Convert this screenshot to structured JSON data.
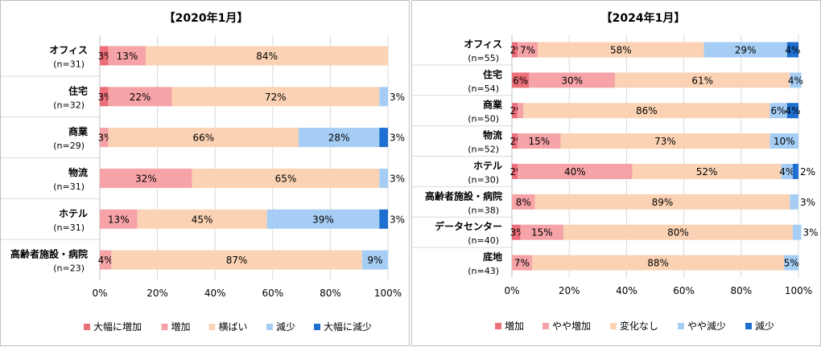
{
  "charts": [
    {
      "title": "【2020年1月】",
      "legend": [
        "大幅に増加",
        "増加",
        "横ばい",
        "減少",
        "大幅に減少"
      ],
      "colors": [
        "#ec6f7a",
        "#f5a3a7",
        "#fbd3b4",
        "#a6cef5",
        "#1f6fd1"
      ],
      "chart_data": {
        "type": "bar",
        "orientation": "horizontal-stacked-100",
        "categories": [
          {
            "name": "オフィス",
            "n": "(n=31)"
          },
          {
            "name": "住宅",
            "n": "(n=32)"
          },
          {
            "name": "商業",
            "n": "(n=29)"
          },
          {
            "name": "物流",
            "n": "(n=31)"
          },
          {
            "name": "ホテル",
            "n": "(n=31)"
          },
          {
            "name": "高齢者施設・病院",
            "n": "(n=23)"
          }
        ],
        "series": [
          {
            "name": "大幅に増加",
            "values": [
              3,
              3,
              0,
              0,
              0,
              0
            ]
          },
          {
            "name": "増加",
            "values": [
              13,
              22,
              3,
              32,
              13,
              4
            ]
          },
          {
            "name": "横ばい",
            "values": [
              84,
              72,
              66,
              65,
              45,
              87
            ]
          },
          {
            "name": "減少",
            "values": [
              0,
              3,
              28,
              3,
              39,
              9
            ]
          },
          {
            "name": "大幅に減少",
            "values": [
              0,
              0,
              3,
              0,
              3,
              0
            ]
          }
        ],
        "xlim": [
          0,
          100
        ],
        "xticks": [
          "0%",
          "20%",
          "40%",
          "60%",
          "80%",
          "100%"
        ],
        "legend_position": "bottom"
      }
    },
    {
      "title": "【2024年1月】",
      "legend": [
        "増加",
        "やや増加",
        "変化なし",
        "やや減少",
        "減少"
      ],
      "colors": [
        "#ec6f7a",
        "#f5a3a7",
        "#fbd3b4",
        "#a6cef5",
        "#1f6fd1"
      ],
      "chart_data": {
        "type": "bar",
        "orientation": "horizontal-stacked-100",
        "categories": [
          {
            "name": "オフィス",
            "n": "(n=55)"
          },
          {
            "name": "住宅",
            "n": "(n=54)"
          },
          {
            "name": "商業",
            "n": "(n=50)"
          },
          {
            "name": "物流",
            "n": "(n=52)"
          },
          {
            "name": "ホテル",
            "n": "(n=30)"
          },
          {
            "name": "高齢者施設・病院",
            "n": "(n=38)"
          },
          {
            "name": "データセンター",
            "n": "(n=40)"
          },
          {
            "name": "底地",
            "n": "(n=43)"
          }
        ],
        "series": [
          {
            "name": "増加",
            "values": [
              2,
              6,
              2,
              2,
              2,
              0,
              3,
              0
            ]
          },
          {
            "name": "やや増加",
            "values": [
              7,
              30,
              2,
              15,
              40,
              8,
              15,
              7
            ]
          },
          {
            "name": "変化なし",
            "values": [
              58,
              61,
              86,
              73,
              52,
              89,
              80,
              88
            ]
          },
          {
            "name": "やや減少",
            "values": [
              29,
              4,
              6,
              10,
              4,
              3,
              3,
              5
            ]
          },
          {
            "name": "減少",
            "values": [
              4,
              0,
              4,
              0,
              2,
              0,
              0,
              0
            ]
          }
        ],
        "xlim": [
          0,
          100
        ],
        "xticks": [
          "0%",
          "20%",
          "40%",
          "60%",
          "80%",
          "100%"
        ],
        "legend_position": "bottom"
      }
    }
  ]
}
